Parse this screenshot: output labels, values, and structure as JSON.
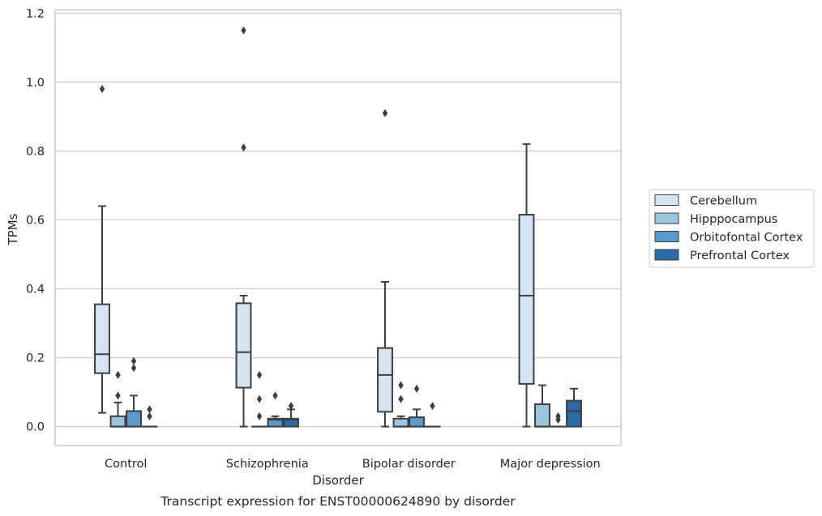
{
  "chart_data": {
    "type": "box",
    "caption": "Transcript expression for ENST00000624890 by disorder",
    "xlabel": "Disorder",
    "ylabel": "TPMs",
    "ylim": [
      -0.055,
      1.21
    ],
    "yticks": [
      0.0,
      0.2,
      0.4,
      0.6,
      0.8,
      1.0,
      1.2
    ],
    "ytick_labels": [
      "0.0",
      "0.2",
      "0.4",
      "0.6",
      "0.8",
      "1.0",
      "1.2"
    ],
    "grid": "horizontal",
    "legend_position": "right",
    "categories": [
      "Control",
      "Schizophrenia",
      "Bipolar disorder",
      "Major depression"
    ],
    "series": [
      {
        "name": "Cerebellum",
        "color": "#d4e4f3",
        "boxes": [
          {
            "whisker_low": 0.04,
            "q1": 0.155,
            "median": 0.21,
            "q3": 0.355,
            "whisker_high": 0.64,
            "outliers": [
              0.98
            ]
          },
          {
            "whisker_low": 0.0,
            "q1": 0.113,
            "median": 0.216,
            "q3": 0.358,
            "whisker_high": 0.38,
            "outliers": [
              1.15,
              0.81
            ]
          },
          {
            "whisker_low": 0.0,
            "q1": 0.043,
            "median": 0.15,
            "q3": 0.228,
            "whisker_high": 0.42,
            "outliers": [
              0.91
            ]
          },
          {
            "whisker_low": 0.0,
            "q1": 0.124,
            "median": 0.38,
            "q3": 0.615,
            "whisker_high": 0.82,
            "outliers": []
          }
        ]
      },
      {
        "name": "Hipppocampus",
        "color": "#9ac5df",
        "boxes": [
          {
            "whisker_low": 0.0,
            "q1": 0.0,
            "median": 0.0,
            "q3": 0.03,
            "whisker_high": 0.07,
            "outliers": [
              0.15,
              0.09
            ]
          },
          {
            "whisker_low": 0.0,
            "q1": 0.0,
            "median": 0.0,
            "q3": 0.0,
            "whisker_high": 0.0,
            "outliers": [
              0.15,
              0.08,
              0.03
            ]
          },
          {
            "whisker_low": 0.0,
            "q1": 0.0,
            "median": 0.0,
            "q3": 0.023,
            "whisker_high": 0.03,
            "outliers": [
              0.12,
              0.08
            ]
          },
          {
            "whisker_low": 0.0,
            "q1": 0.0,
            "median": 0.0,
            "q3": 0.065,
            "whisker_high": 0.12,
            "outliers": []
          }
        ]
      },
      {
        "name": "Orbitofontal Cortex",
        "color": "#5a9bcc",
        "boxes": [
          {
            "whisker_low": 0.0,
            "q1": 0.0,
            "median": 0.0,
            "q3": 0.045,
            "whisker_high": 0.09,
            "outliers": [
              0.19,
              0.17
            ]
          },
          {
            "whisker_low": 0.0,
            "q1": 0.0,
            "median": 0.02,
            "q3": 0.023,
            "whisker_high": 0.03,
            "outliers": [
              0.09
            ]
          },
          {
            "whisker_low": 0.0,
            "q1": 0.0,
            "median": 0.0,
            "q3": 0.027,
            "whisker_high": 0.05,
            "outliers": [
              0.11
            ]
          },
          {
            "whisker_low": 0.0,
            "q1": 0.0,
            "median": 0.0,
            "q3": 0.0,
            "whisker_high": 0.0,
            "outliers": [
              0.03,
              0.02
            ]
          }
        ]
      },
      {
        "name": "Prefrontal Cortex",
        "color": "#2b6aa5",
        "boxes": [
          {
            "whisker_low": 0.0,
            "q1": 0.0,
            "median": 0.0,
            "q3": 0.0,
            "whisker_high": 0.0,
            "outliers": [
              0.05,
              0.03
            ]
          },
          {
            "whisker_low": 0.0,
            "q1": 0.0,
            "median": 0.02,
            "q3": 0.023,
            "whisker_high": 0.05,
            "outliers": [
              0.06
            ]
          },
          {
            "whisker_low": 0.0,
            "q1": 0.0,
            "median": 0.0,
            "q3": 0.0,
            "whisker_high": 0.0,
            "outliers": [
              0.06
            ]
          },
          {
            "whisker_low": 0.0,
            "q1": 0.0,
            "median": 0.045,
            "q3": 0.075,
            "whisker_high": 0.11,
            "outliers": []
          }
        ]
      }
    ]
  },
  "colors": {
    "frame": "#cccccc",
    "grid": "#cccccc",
    "box_edge": "#3f3f3f",
    "outlier": "#3f3f3f"
  }
}
